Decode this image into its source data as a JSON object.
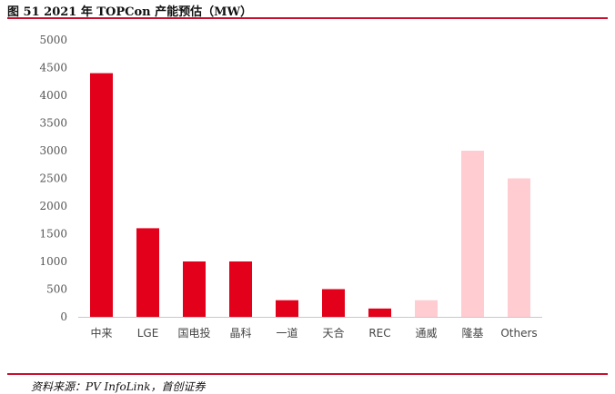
{
  "figure": {
    "title": "图 51 2021 年 TOPCon 产能预估（MW）",
    "source": "资料来源：PV InfoLink，首创证券"
  },
  "colors": {
    "primary": "#e2001a",
    "light": "#ffccd2",
    "rule": "#c8102e",
    "axis": "#c8c8c8"
  },
  "chart_data": {
    "type": "bar",
    "categories": [
      "中来",
      "LGE",
      "国电投",
      "晶科",
      "一道",
      "天合",
      "REC",
      "通威",
      "隆基",
      "Others"
    ],
    "values": [
      4400,
      1600,
      1000,
      1000,
      300,
      500,
      150,
      300,
      3000,
      2500
    ],
    "highlight": [
      true,
      true,
      true,
      true,
      true,
      true,
      true,
      false,
      false,
      false
    ],
    "ylim": [
      0,
      5000
    ],
    "yticks": [
      0,
      500,
      1000,
      1500,
      2000,
      2500,
      3000,
      3500,
      4000,
      4500,
      5000
    ],
    "grid": false,
    "legend": "none"
  }
}
